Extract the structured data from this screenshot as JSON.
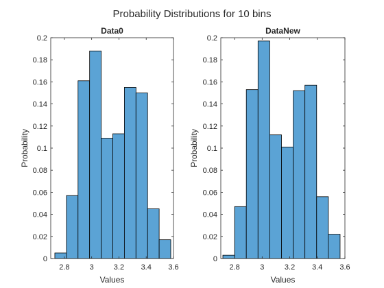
{
  "figure_title": "Probability Distributions for 10 bins",
  "chart_data": [
    {
      "type": "bar",
      "title": "Data0",
      "xlabel": "Values",
      "ylabel": "Probability",
      "xlim": [
        2.7,
        3.6
      ],
      "ylim": [
        0,
        0.2
      ],
      "xticks": [
        2.8,
        3,
        3.2,
        3.4,
        3.6
      ],
      "xtick_labels": [
        "2.8",
        "3",
        "3.2",
        "3.4",
        "3.6"
      ],
      "yticks": [
        0,
        0.02,
        0.04,
        0.06,
        0.08,
        0.1,
        0.12,
        0.14,
        0.16,
        0.18,
        0.2
      ],
      "ytick_labels": [
        "0",
        "0.02",
        "0.04",
        "0.06",
        "0.08",
        "0.1",
        "0.12",
        "0.14",
        "0.16",
        "0.18",
        "0.2"
      ],
      "bin_edges": [
        2.73,
        2.815,
        2.9,
        2.985,
        3.07,
        3.155,
        3.24,
        3.325,
        3.41,
        3.495,
        3.58
      ],
      "values": [
        0.005,
        0.057,
        0.161,
        0.188,
        0.109,
        0.113,
        0.155,
        0.15,
        0.045,
        0.017
      ],
      "bar_color": "#5ba3d5",
      "grid": false
    },
    {
      "type": "bar",
      "title": "DataNew",
      "xlabel": "Values",
      "ylabel": "Probability",
      "xlim": [
        2.7,
        3.6
      ],
      "ylim": [
        0,
        0.2
      ],
      "xticks": [
        2.8,
        3,
        3.2,
        3.4,
        3.6
      ],
      "xtick_labels": [
        "2.8",
        "3",
        "3.2",
        "3.4",
        "3.6"
      ],
      "yticks": [
        0,
        0.02,
        0.04,
        0.06,
        0.08,
        0.1,
        0.12,
        0.14,
        0.16,
        0.18,
        0.2
      ],
      "ytick_labels": [
        "0",
        "0.02",
        "0.04",
        "0.06",
        "0.08",
        "0.1",
        "0.12",
        "0.14",
        "0.16",
        "0.18",
        "0.2"
      ],
      "bin_edges": [
        2.715,
        2.8,
        2.885,
        2.97,
        3.055,
        3.14,
        3.225,
        3.31,
        3.395,
        3.48,
        3.565
      ],
      "values": [
        0.003,
        0.047,
        0.153,
        0.197,
        0.112,
        0.101,
        0.152,
        0.157,
        0.056,
        0.022
      ],
      "bar_color": "#5ba3d5",
      "grid": false
    }
  ]
}
